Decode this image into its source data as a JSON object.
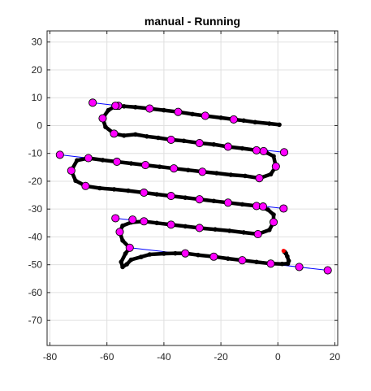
{
  "chart_data": {
    "type": "scatter",
    "title": "manual - Running",
    "xlabel": "",
    "ylabel": "",
    "xlim": [
      -81,
      21
    ],
    "ylim": [
      -79,
      34
    ],
    "xticks": [
      -80,
      -60,
      -40,
      -20,
      0,
      20
    ],
    "yticks": [
      -70,
      -60,
      -50,
      -40,
      -30,
      -20,
      -10,
      0,
      10,
      20,
      30
    ],
    "grid": true,
    "legend": "none",
    "colors": {
      "waypoint_fill": "#ff00ff",
      "waypoint_edge": "#000000",
      "reference_line": "#0000ff",
      "trajectory": "#000000",
      "current_position": "#ff0000",
      "grid": "#e0e0e0",
      "axes": "#262626"
    },
    "series": [
      {
        "type": "waypoints",
        "points": [
          [
            -65,
            8.2
          ],
          [
            -56,
            7.1
          ],
          [
            -57,
            7.1
          ],
          [
            -45,
            6.1
          ],
          [
            -35,
            4.9
          ],
          [
            -25.5,
            3.5
          ],
          [
            -15.5,
            2.2
          ],
          [
            -61.5,
            2.6
          ],
          [
            -57.5,
            -2.9
          ],
          [
            -37.5,
            -5.1
          ],
          [
            -27.5,
            -6.3
          ],
          [
            -17.5,
            -7.6
          ],
          [
            -7.5,
            -8.9
          ],
          [
            -5,
            -9.2
          ],
          [
            2.2,
            -9.6
          ],
          [
            -76.5,
            -10.5
          ],
          [
            -66.5,
            -11.7
          ],
          [
            -56.5,
            -13
          ],
          [
            -46.5,
            -14.2
          ],
          [
            -36.5,
            -15.4
          ],
          [
            -26.5,
            -16.6
          ],
          [
            -6.5,
            -18.9
          ],
          [
            -0.7,
            -14.7
          ],
          [
            -72.5,
            -16.2
          ],
          [
            -67.5,
            -21.7
          ],
          [
            -47,
            -24.1
          ],
          [
            -37.5,
            -25.3
          ],
          [
            -27.5,
            -26.5
          ],
          [
            -17.5,
            -27.7
          ],
          [
            -7.5,
            -28.9
          ],
          [
            -5.2,
            -29.1
          ],
          [
            2,
            -29.8
          ],
          [
            -57,
            -33.3
          ],
          [
            -51,
            -33.8
          ],
          [
            -47,
            -34.4
          ],
          [
            -37.5,
            -35.6
          ],
          [
            -27.5,
            -36.8
          ],
          [
            -7,
            -39
          ],
          [
            -1.5,
            -34.7
          ],
          [
            -55.5,
            -38.2
          ],
          [
            -52,
            -43.9
          ],
          [
            -32.5,
            -45.9
          ],
          [
            -22.5,
            -47.1
          ],
          [
            -12.5,
            -48.4
          ],
          [
            -2.5,
            -49.6
          ],
          [
            7.5,
            -50.8
          ],
          [
            17.5,
            -52
          ]
        ]
      },
      {
        "type": "reference_lines",
        "segments": [
          [
            [
              -65,
              8.2
            ],
            [
              -15.5,
              2.2
            ]
          ],
          [
            [
              -57.5,
              -2.9
            ],
            [
              2.2,
              -9.6
            ]
          ],
          [
            [
              -76.5,
              -10.5
            ],
            [
              -6.5,
              -18.9
            ]
          ],
          [
            [
              -67.5,
              -21.7
            ],
            [
              2,
              -29.8
            ]
          ],
          [
            [
              -57,
              -33.3
            ],
            [
              -7,
              -39
            ]
          ],
          [
            [
              -52,
              -43.9
            ],
            [
              17.5,
              -52
            ]
          ]
        ]
      },
      {
        "type": "trajectory",
        "points": [
          [
            0.5,
            0.3
          ],
          [
            -3,
            0.7
          ],
          [
            -8,
            1.2
          ],
          [
            -12,
            1.8
          ],
          [
            -15.5,
            2.2
          ],
          [
            -20,
            2.8
          ],
          [
            -25.5,
            3.5
          ],
          [
            -30,
            4.1
          ],
          [
            -35,
            4.9
          ],
          [
            -40,
            5.5
          ],
          [
            -45,
            6.1
          ],
          [
            -50,
            6.6
          ],
          [
            -54,
            6.9
          ],
          [
            -57,
            7
          ],
          [
            -59.5,
            5.5
          ],
          [
            -61.5,
            2.6
          ],
          [
            -60.5,
            -0.5
          ],
          [
            -57.5,
            -2.9
          ],
          [
            -54,
            -3.6
          ],
          [
            -50,
            -3.2
          ],
          [
            -46,
            -3.9
          ],
          [
            -42,
            -4.4
          ],
          [
            -37.5,
            -5.1
          ],
          [
            -33,
            -5.5
          ],
          [
            -27.5,
            -6.3
          ],
          [
            -22.5,
            -6.8
          ],
          [
            -17.5,
            -7.6
          ],
          [
            -12.5,
            -8.2
          ],
          [
            -7.5,
            -8.9
          ],
          [
            -4,
            -9.7
          ],
          [
            -1.5,
            -11
          ],
          [
            -0.7,
            -14.7
          ],
          [
            -2.5,
            -17.5
          ],
          [
            -6.5,
            -18.9
          ],
          [
            -11.5,
            -18.1
          ],
          [
            -16.5,
            -17.7
          ],
          [
            -21.5,
            -17.1
          ],
          [
            -26.5,
            -16.6
          ],
          [
            -31.5,
            -16
          ],
          [
            -36.5,
            -15.4
          ],
          [
            -41.5,
            -14.8
          ],
          [
            -46.5,
            -14.2
          ],
          [
            -51.5,
            -13.6
          ],
          [
            -56.5,
            -13
          ],
          [
            -61.5,
            -12.4
          ],
          [
            -66.5,
            -11.7
          ],
          [
            -70.5,
            -12.5
          ],
          [
            -72.5,
            -16.2
          ],
          [
            -71,
            -19.8
          ],
          [
            -67.5,
            -21.7
          ],
          [
            -62.5,
            -22.5
          ],
          [
            -57.5,
            -22.9
          ],
          [
            -52.5,
            -23.4
          ],
          [
            -47,
            -24.1
          ],
          [
            -42.5,
            -24.7
          ],
          [
            -37.5,
            -25.3
          ],
          [
            -32.5,
            -25.9
          ],
          [
            -27.5,
            -26.5
          ],
          [
            -22.5,
            -27.1
          ],
          [
            -17.5,
            -27.7
          ],
          [
            -12.5,
            -28.3
          ],
          [
            -7.5,
            -28.9
          ],
          [
            -3.5,
            -30.2
          ],
          [
            -1.5,
            -32
          ],
          [
            -1.5,
            -34.7
          ],
          [
            -3,
            -37.5
          ],
          [
            -7,
            -39
          ],
          [
            -12,
            -38.4
          ],
          [
            -17,
            -37.8
          ],
          [
            -22,
            -37.3
          ],
          [
            -27.5,
            -36.8
          ],
          [
            -32.5,
            -36.2
          ],
          [
            -37.5,
            -35.6
          ],
          [
            -42.5,
            -35
          ],
          [
            -47,
            -34.4
          ],
          [
            -51.5,
            -34.8
          ],
          [
            -54.5,
            -36
          ],
          [
            -55.5,
            -38.2
          ],
          [
            -54.5,
            -41.3
          ],
          [
            -52,
            -43.9
          ],
          [
            -53.5,
            -46
          ],
          [
            -55,
            -49
          ],
          [
            -54.5,
            -50.8
          ],
          [
            -53,
            -49.8
          ],
          [
            -51.5,
            -48.2
          ],
          [
            -48,
            -47.2
          ],
          [
            -45,
            -46.3
          ],
          [
            -40,
            -46
          ],
          [
            -36,
            -45.9
          ],
          [
            -32.5,
            -45.9
          ],
          [
            -28,
            -46.5
          ],
          [
            -22.5,
            -47.1
          ],
          [
            -17.5,
            -47.8
          ],
          [
            -12.5,
            -48.4
          ],
          [
            -7.5,
            -49
          ],
          [
            -2.5,
            -49.6
          ],
          [
            1.5,
            -49.7
          ],
          [
            3.5,
            -49.6
          ],
          [
            3.8,
            -48.6
          ],
          [
            3.3,
            -47
          ],
          [
            2.8,
            -45.9
          ],
          [
            2.3,
            -45.3
          ]
        ]
      },
      {
        "type": "current_position",
        "points": [
          [
            2,
            -45
          ]
        ]
      }
    ]
  }
}
